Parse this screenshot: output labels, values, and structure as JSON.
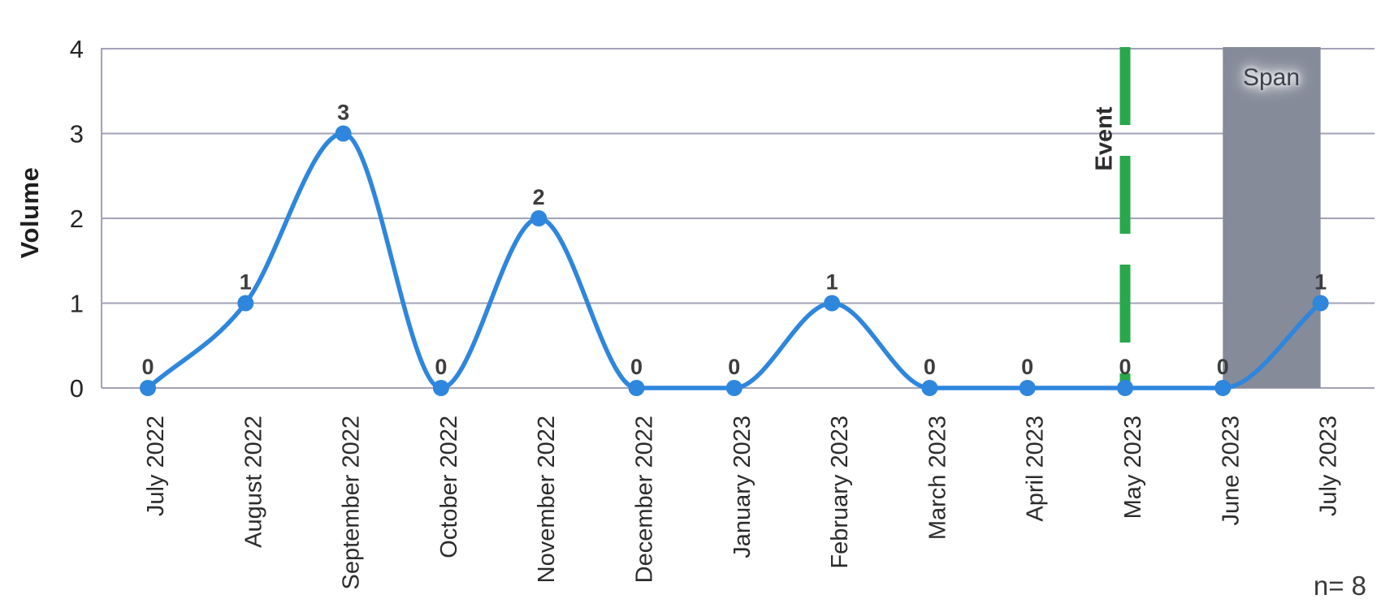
{
  "chart_data": {
    "type": "line",
    "title": "",
    "xlabel": "",
    "ylabel": "Volume",
    "categories": [
      "July 2022",
      "August 2022",
      "September 2022",
      "October 2022",
      "November 2022",
      "December 2022",
      "January 2023",
      "February 2023",
      "March 2023",
      "April 2023",
      "May 2023",
      "June 2023",
      "July 2023"
    ],
    "values": [
      0,
      1,
      3,
      0,
      2,
      0,
      0,
      1,
      0,
      0,
      0,
      0,
      1
    ],
    "ylim": [
      0,
      4
    ],
    "yticks": [
      0,
      1,
      2,
      3,
      4
    ],
    "grid": true,
    "legend": "none",
    "line_style": "smooth-curve-with-round-markers",
    "annotations": {
      "event": {
        "label": "Event",
        "category": "May 2023",
        "style": "vertical-dashed-line"
      },
      "span": {
        "label": "Span",
        "from": "June 2023",
        "to": "July 2023",
        "style": "shaded-vertical-band"
      },
      "sample_size": "n= 8"
    },
    "colors": {
      "line": "#2E86DD",
      "marker": "#2E86DD",
      "event_line": "#28A84A",
      "span_fill": "#868B9A",
      "gridline": "#A2A2B8",
      "data_label": "#3D3D3D",
      "tick_label": "#262626",
      "axis_label": "#2B2B2B"
    }
  }
}
